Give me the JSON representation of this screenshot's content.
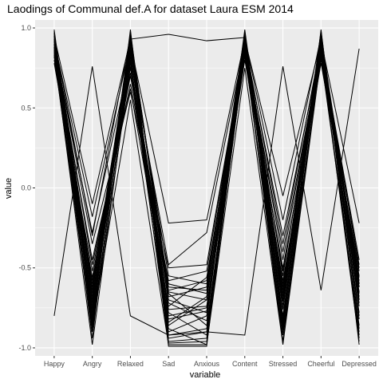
{
  "chart_data": {
    "type": "line",
    "title": "Laodings of Communal def.A for dataset Laura ESM 2014",
    "xlabel": "variable",
    "ylabel": "value",
    "ylim": [
      -1.05,
      1.05
    ],
    "y_ticks": [
      1.0,
      0.5,
      0.0,
      -0.5,
      -1.0
    ],
    "y_tick_labels": [
      "1.0",
      "0.5",
      "0.0",
      "-0.5",
      "-1.0"
    ],
    "categories": [
      "Happy",
      "Angry",
      "Relaxed",
      "Sad",
      "Anxious",
      "Content",
      "Stressed",
      "Cheerful",
      "Depressed"
    ],
    "grid": true,
    "panel_background": "#ebebeb",
    "grid_color": "#ffffff",
    "line_color": "#000000",
    "series": [
      {
        "values": [
          0.97,
          -0.72,
          0.95,
          -0.68,
          -0.62,
          0.97,
          -0.71,
          0.96,
          -0.7
        ]
      },
      {
        "values": [
          0.92,
          -0.66,
          0.9,
          -0.8,
          -0.75,
          0.93,
          -0.64,
          0.91,
          -0.65
        ]
      },
      {
        "values": [
          0.88,
          -0.8,
          0.86,
          -0.92,
          -0.88,
          0.9,
          -0.82,
          0.87,
          -0.78
        ]
      },
      {
        "values": [
          0.95,
          -0.58,
          0.88,
          -0.55,
          -0.6,
          0.94,
          -0.55,
          0.93,
          -0.6
        ]
      },
      {
        "values": [
          0.83,
          -0.85,
          0.8,
          -0.97,
          -0.96,
          0.85,
          -0.88,
          0.84,
          -0.9
        ]
      },
      {
        "values": [
          0.99,
          -0.76,
          0.97,
          -0.72,
          -0.83,
          0.99,
          -0.74,
          0.98,
          -0.82
        ]
      },
      {
        "values": [
          0.86,
          -0.62,
          0.75,
          -0.64,
          -0.58,
          0.88,
          -0.6,
          0.85,
          -0.58
        ]
      },
      {
        "values": [
          0.9,
          -0.7,
          0.92,
          -0.86,
          -0.7,
          0.91,
          -0.76,
          0.89,
          -0.74
        ]
      },
      {
        "values": [
          0.94,
          -0.88,
          0.84,
          -0.78,
          -0.92,
          0.96,
          -0.9,
          0.95,
          -0.94
        ]
      },
      {
        "values": [
          0.8,
          -0.52,
          0.7,
          -0.6,
          -0.66,
          0.82,
          -0.5,
          0.8,
          -0.52
        ]
      },
      {
        "values": [
          0.96,
          -0.94,
          0.99,
          -0.99,
          -0.99,
          0.98,
          -0.96,
          0.99,
          -0.98
        ]
      },
      {
        "values": [
          0.89,
          -0.6,
          0.78,
          -0.7,
          -0.78,
          0.87,
          -0.66,
          0.86,
          -0.62
        ]
      },
      {
        "values": [
          0.93,
          -0.78,
          0.91,
          -0.84,
          -0.68,
          0.94,
          -0.8,
          0.92,
          -0.8
        ]
      },
      {
        "values": [
          0.85,
          -0.68,
          0.82,
          -0.66,
          -0.86,
          0.86,
          -0.7,
          0.83,
          -0.68
        ]
      },
      {
        "values": [
          0.98,
          -0.84,
          0.94,
          -0.9,
          -0.8,
          0.97,
          -0.86,
          0.97,
          -0.88
        ]
      },
      {
        "values": [
          0.91,
          -0.48,
          0.65,
          -0.58,
          -0.52,
          0.9,
          -0.45,
          0.88,
          -0.5
        ]
      },
      {
        "values": [
          0.87,
          -0.74,
          0.88,
          -0.76,
          -0.74,
          0.89,
          -0.68,
          0.9,
          -0.72
        ]
      },
      {
        "values": [
          0.82,
          -0.9,
          0.76,
          -0.94,
          -0.9,
          0.84,
          -0.92,
          0.82,
          -0.92
        ]
      },
      {
        "values": [
          0.95,
          -0.64,
          0.93,
          -0.62,
          -0.64,
          0.95,
          -0.62,
          0.94,
          -0.66
        ]
      },
      {
        "values": [
          0.78,
          -0.56,
          0.72,
          -0.82,
          -0.77,
          0.8,
          -0.58,
          0.78,
          -0.56
        ]
      },
      {
        "values": [
          0.97,
          -0.82,
          0.96,
          -0.96,
          -0.94,
          0.96,
          -0.84,
          0.96,
          -0.86
        ]
      },
      {
        "values": [
          0.9,
          -0.35,
          0.6,
          -0.5,
          -0.48,
          0.88,
          -0.4,
          0.87,
          -0.48
        ]
      },
      {
        "values": [
          0.84,
          -0.98,
          0.8,
          -0.88,
          -0.98,
          0.86,
          -0.97,
          0.85,
          -0.96
        ]
      },
      {
        "values": [
          0.88,
          -0.45,
          0.62,
          -0.74,
          -0.56,
          0.85,
          -0.52,
          0.84,
          -0.55
        ]
      },
      {
        "values": [
          0.93,
          -0.3,
          0.95,
          -0.65,
          -0.7,
          0.92,
          -0.35,
          0.91,
          -0.62
        ]
      },
      {
        "values": [
          0.95,
          -0.1,
          0.93,
          0.96,
          0.92,
          0.94,
          -0.2,
          0.95,
          -0.6
        ]
      },
      {
        "values": [
          0.92,
          -0.18,
          0.9,
          -0.22,
          -0.2,
          0.93,
          -0.05,
          0.92,
          -0.22
        ]
      },
      {
        "values": [
          0.88,
          -0.28,
          0.82,
          -0.48,
          -0.28,
          0.9,
          -0.3,
          0.88,
          -0.45
        ]
      },
      {
        "values": [
          -0.8,
          0.76,
          -0.8,
          -0.92,
          -0.9,
          -0.92,
          0.76,
          -0.64,
          0.87
        ]
      },
      {
        "values": [
          0.86,
          -0.86,
          0.55,
          -0.98,
          -0.98,
          0.75,
          -0.98,
          0.82,
          -0.7
        ]
      }
    ]
  }
}
